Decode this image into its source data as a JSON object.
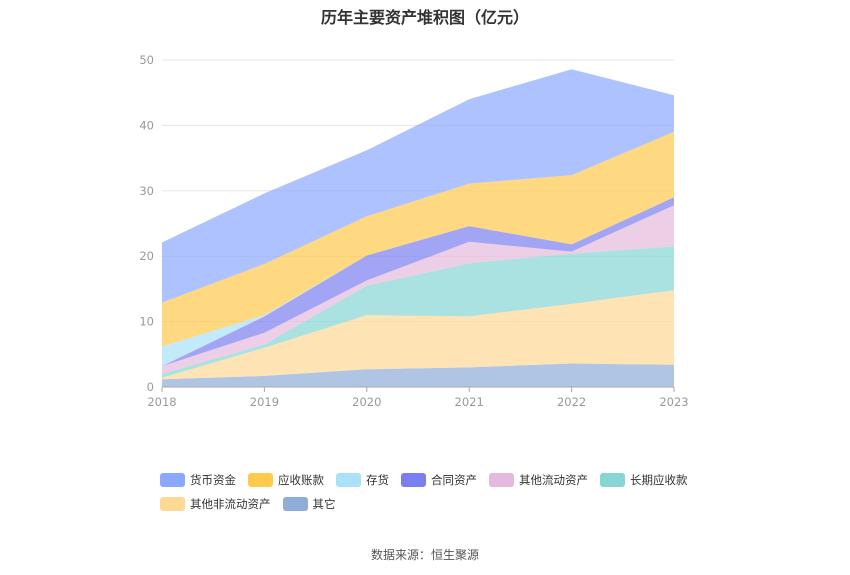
{
  "source_text": "数据来源：恒生聚源",
  "chart_data": {
    "type": "area",
    "stacked": true,
    "title": "历年主要资产堆积图（亿元）",
    "x": [
      "2018",
      "2019",
      "2020",
      "2021",
      "2022",
      "2023"
    ],
    "ylim": [
      0,
      50
    ],
    "yticks": [
      0,
      10,
      20,
      30,
      40,
      50
    ],
    "grid": true,
    "legend_position": "bottom",
    "series": [
      {
        "name": "其它",
        "color": "#8fadd9",
        "values": [
          1.2,
          1.7,
          2.7,
          3.0,
          3.6,
          3.4
        ]
      },
      {
        "name": "其他非流动资产",
        "color": "#fdd994",
        "values": [
          0.2,
          4.3,
          8.3,
          7.8,
          9.1,
          11.4
        ]
      },
      {
        "name": "长期应收款",
        "color": "#86d6d4",
        "values": [
          0.6,
          0.5,
          4.5,
          8.1,
          7.7,
          6.7
        ]
      },
      {
        "name": "其他流动资产",
        "color": "#e5b9dd",
        "values": [
          1.2,
          1.8,
          0.8,
          3.3,
          0.3,
          6.3
        ]
      },
      {
        "name": "合同资产",
        "color": "#7a7ff0",
        "values": [
          0.0,
          2.5,
          3.8,
          2.4,
          1.1,
          1.2
        ]
      },
      {
        "name": "存货",
        "color": "#a9e1f8",
        "values": [
          3.0,
          0.2,
          0.0,
          0.0,
          0.0,
          0.0
        ]
      },
      {
        "name": "应收账款",
        "color": "#ffc94c",
        "values": [
          6.7,
          7.8,
          6.0,
          6.5,
          10.6,
          10.0
        ]
      },
      {
        "name": "货币资金",
        "color": "#8aa8fd",
        "values": [
          9.2,
          10.8,
          10.1,
          12.9,
          16.2,
          5.6
        ]
      }
    ],
    "legend_order": [
      "货币资金",
      "应收账款",
      "存货",
      "合同资产",
      "其他流动资产",
      "长期应收款",
      "其他非流动资产",
      "其它"
    ]
  }
}
